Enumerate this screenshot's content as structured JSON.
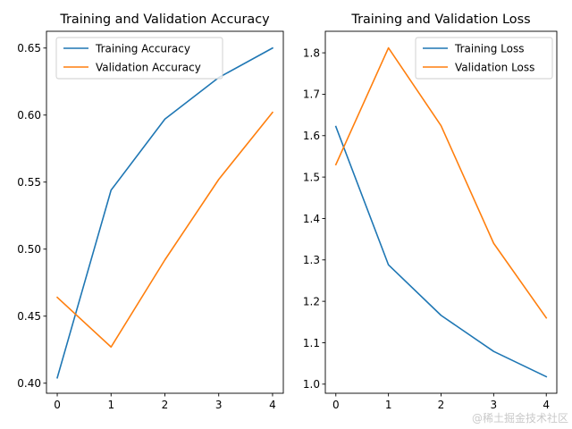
{
  "chart_data": [
    {
      "type": "line",
      "title": "Training and Validation Accuracy",
      "xlabel": "",
      "ylabel": "",
      "x": [
        0,
        1,
        2,
        3,
        4
      ],
      "xticks": [
        "0",
        "1",
        "2",
        "3",
        "4"
      ],
      "xlim": [
        -0.2,
        4.2
      ],
      "yticks": [
        "0.40",
        "0.45",
        "0.50",
        "0.55",
        "0.60",
        "0.65"
      ],
      "ytick_values": [
        0.4,
        0.45,
        0.5,
        0.55,
        0.6,
        0.65
      ],
      "ylim": [
        0.3925,
        0.6625
      ],
      "legend_position": "upper left",
      "series": [
        {
          "name": "Training Accuracy",
          "color": "#1f77b4",
          "values": [
            0.404,
            0.544,
            0.597,
            0.628,
            0.65
          ]
        },
        {
          "name": "Validation Accuracy",
          "color": "#ff7f0e",
          "values": [
            0.464,
            0.427,
            0.492,
            0.552,
            0.602
          ]
        }
      ]
    },
    {
      "type": "line",
      "title": "Training and Validation Loss",
      "xlabel": "",
      "ylabel": "",
      "x": [
        0,
        1,
        2,
        3,
        4
      ],
      "xticks": [
        "0",
        "1",
        "2",
        "3",
        "4"
      ],
      "xlim": [
        -0.2,
        4.2
      ],
      "yticks": [
        "1.0",
        "1.1",
        "1.2",
        "1.3",
        "1.4",
        "1.5",
        "1.6",
        "1.7",
        "1.8"
      ],
      "ytick_values": [
        1.0,
        1.1,
        1.2,
        1.3,
        1.4,
        1.5,
        1.6,
        1.7,
        1.8
      ],
      "ylim": [
        0.978,
        1.852
      ],
      "legend_position": "upper right",
      "series": [
        {
          "name": "Training Loss",
          "color": "#1f77b4",
          "values": [
            1.622,
            1.288,
            1.166,
            1.079,
            1.018
          ]
        },
        {
          "name": "Validation Loss",
          "color": "#ff7f0e",
          "values": [
            1.53,
            1.812,
            1.624,
            1.34,
            1.16
          ]
        }
      ]
    }
  ],
  "watermark": "@稀土掘金技术社区"
}
